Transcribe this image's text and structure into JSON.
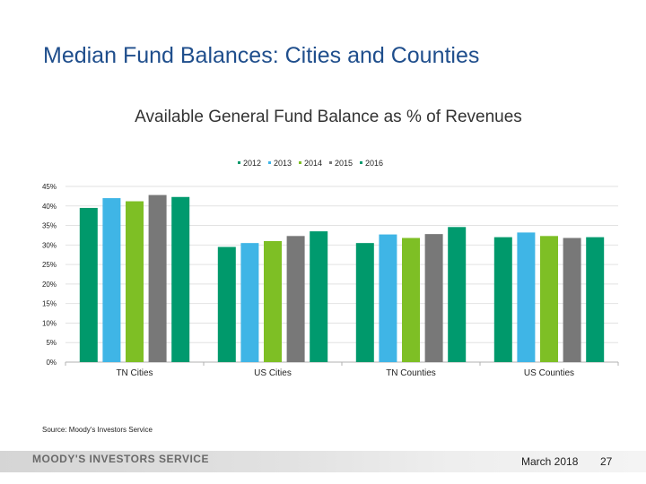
{
  "slide": {
    "title": "Median Fund Balances: Cities and Counties",
    "source": "Source: Moody's Investors Service",
    "footer_logo": "MOODY'S INVESTORS SERVICE",
    "footer_date": "March 2018",
    "page_number": "27"
  },
  "chart_data": {
    "type": "bar",
    "title": "Available General Fund Balance as % of Revenues",
    "categories": [
      "TN Cities",
      "US Cities",
      "TN Counties",
      "US Counties"
    ],
    "series": [
      {
        "name": "2012",
        "color": "#00996b",
        "values": [
          39.5,
          29.5,
          30.5,
          32
        ]
      },
      {
        "name": "2013",
        "color": "#3fb5e6",
        "values": [
          42,
          30.5,
          32.7,
          33.2
        ]
      },
      {
        "name": "2014",
        "color": "#7ebf25",
        "values": [
          41.2,
          31,
          31.8,
          32.3
        ]
      },
      {
        "name": "2015",
        "color": "#787878",
        "values": [
          42.8,
          32.3,
          32.8,
          31.8
        ]
      },
      {
        "name": "2016",
        "color": "#009a6e",
        "values": [
          42.3,
          33.5,
          34.6,
          32
        ]
      }
    ],
    "y_ticks": [
      "0%",
      "5%",
      "10%",
      "15%",
      "20%",
      "25%",
      "30%",
      "35%",
      "40%",
      "45%"
    ],
    "ylim": [
      0,
      45
    ],
    "grid": true,
    "legend_position": "top-center"
  }
}
